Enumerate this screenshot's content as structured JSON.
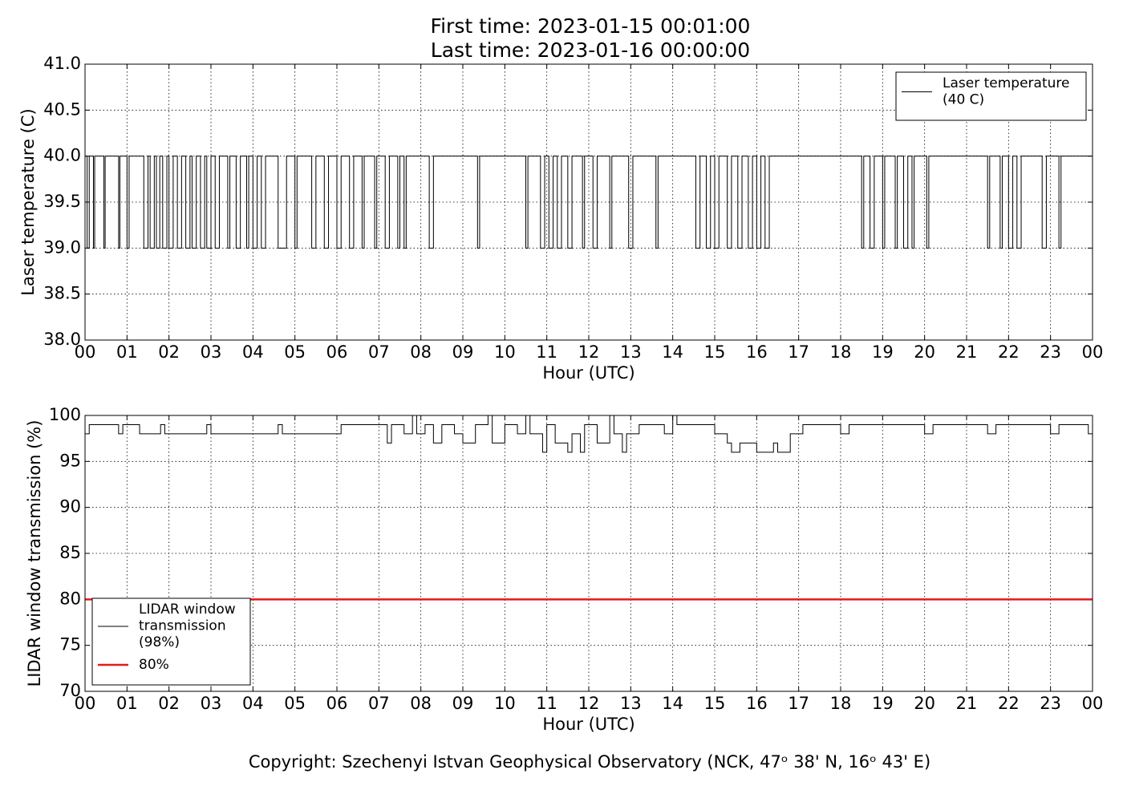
{
  "header": {
    "lines": [
      "First time: 2023-01-15 00:01:00",
      "Last time: 2023-01-16 00:00:00"
    ]
  },
  "footer": "Copyright: Szechenyi Istvan Geophysical Observatory (NCK, 47ᵒ 38' N, 16ᵒ 43' E)",
  "chart_data": [
    {
      "type": "line",
      "step": true,
      "xlabel": "Hour (UTC)",
      "ylabel": "Laser temperature (C)",
      "xlim": [
        0,
        24
      ],
      "ylim": [
        38,
        41
      ],
      "grid": true,
      "legend": "upper right",
      "xticks": [
        {
          "value": 0,
          "label": "00"
        },
        {
          "value": 1,
          "label": "01"
        },
        {
          "value": 2,
          "label": "02"
        },
        {
          "value": 3,
          "label": "03"
        },
        {
          "value": 4,
          "label": "04"
        },
        {
          "value": 5,
          "label": "05"
        },
        {
          "value": 6,
          "label": "06"
        },
        {
          "value": 7,
          "label": "07"
        },
        {
          "value": 8,
          "label": "08"
        },
        {
          "value": 9,
          "label": "09"
        },
        10,
        11,
        12,
        13,
        14,
        15,
        16,
        17,
        18,
        19,
        20,
        21,
        22,
        23,
        {
          "value": 24,
          "label": "00"
        }
      ],
      "yticks": [
        {
          "value": 38,
          "label": "38.0"
        },
        38.5,
        {
          "value": 39,
          "label": "39.0"
        },
        39.5,
        {
          "value": 40,
          "label": "40.0"
        },
        40.5,
        {
          "value": 41,
          "label": "41.0"
        }
      ],
      "series": [
        {
          "name": "Laser temperature\n(40 C)",
          "color": "#000000",
          "width": 1,
          "x": [
            0,
            0.05,
            0.1,
            0.2,
            0.23,
            0.45,
            0.48,
            0.8,
            0.83,
            1.0,
            1.05,
            1.4,
            1.5,
            1.55,
            1.65,
            1.7,
            1.78,
            1.85,
            1.95,
            2.0,
            2.1,
            2.2,
            2.3,
            2.4,
            2.5,
            2.55,
            2.65,
            2.75,
            2.85,
            2.9,
            3.0,
            3.1,
            3.2,
            3.4,
            3.45,
            3.6,
            3.7,
            3.85,
            3.9,
            4.0,
            4.1,
            4.2,
            4.3,
            4.6,
            4.8,
            5.0,
            5.05,
            5.4,
            5.5,
            5.7,
            5.8,
            6.0,
            6.1,
            6.3,
            6.4,
            6.6,
            6.65,
            6.9,
            6.95,
            7.15,
            7.25,
            7.45,
            7.5,
            7.6,
            7.65,
            8.2,
            8.3,
            9.35,
            9.4,
            10.5,
            10.55,
            10.85,
            10.95,
            11.05,
            11.15,
            11.25,
            11.35,
            11.5,
            11.6,
            11.85,
            11.9,
            12.1,
            12.2,
            12.5,
            12.55,
            12.95,
            13.05,
            13.6,
            13.65,
            14.55,
            14.65,
            14.8,
            14.9,
            15.0,
            15.1,
            15.3,
            15.4,
            15.55,
            15.65,
            15.8,
            15.9,
            16.0,
            16.1,
            16.2,
            16.3,
            18.5,
            18.55,
            18.7,
            18.8,
            19.0,
            19.05,
            19.3,
            19.35,
            19.5,
            19.6,
            19.7,
            19.75,
            20.05,
            20.1,
            21.5,
            21.55,
            21.8,
            21.85,
            22.0,
            22.1,
            22.2,
            22.3,
            22.8,
            22.9,
            23.2,
            23.25,
            24
          ],
          "values": [
            40,
            39,
            40,
            39,
            40,
            39,
            40,
            39,
            40,
            39,
            40,
            39,
            40,
            39,
            40,
            39,
            40,
            39,
            40,
            39,
            40,
            39,
            40,
            39,
            40,
            39,
            40,
            39,
            40,
            39,
            40,
            39,
            40,
            39,
            40,
            39,
            40,
            39,
            40,
            39,
            40,
            39,
            40,
            39,
            40,
            39,
            40,
            39,
            40,
            39,
            40,
            39,
            40,
            39,
            40,
            39,
            40,
            39,
            40,
            39,
            40,
            39,
            40,
            39,
            40,
            39,
            40,
            39,
            40,
            39,
            40,
            39,
            40,
            39,
            40,
            39,
            40,
            39,
            40,
            39,
            40,
            39,
            40,
            39,
            40,
            39,
            40,
            39,
            40,
            39,
            40,
            39,
            40,
            39,
            40,
            39,
            40,
            39,
            40,
            39,
            40,
            39,
            40,
            39,
            40,
            39,
            40,
            39,
            40,
            39,
            40,
            39,
            40,
            39,
            40,
            39,
            40,
            39,
            40,
            39,
            40,
            39,
            40,
            39,
            40,
            39,
            40,
            39,
            40,
            39,
            40,
            40
          ]
        }
      ]
    },
    {
      "type": "line",
      "step": true,
      "xlabel": "Hour (UTC)",
      "ylabel": "LIDAR window transmission (%)",
      "xlim": [
        0,
        24
      ],
      "ylim": [
        70,
        100
      ],
      "grid": true,
      "legend": "lower left",
      "xticks": [
        {
          "value": 0,
          "label": "00"
        },
        {
          "value": 1,
          "label": "01"
        },
        {
          "value": 2,
          "label": "02"
        },
        {
          "value": 3,
          "label": "03"
        },
        {
          "value": 4,
          "label": "04"
        },
        {
          "value": 5,
          "label": "05"
        },
        {
          "value": 6,
          "label": "06"
        },
        {
          "value": 7,
          "label": "07"
        },
        {
          "value": 8,
          "label": "08"
        },
        {
          "value": 9,
          "label": "09"
        },
        10,
        11,
        12,
        13,
        14,
        15,
        16,
        17,
        18,
        19,
        20,
        21,
        22,
        23,
        {
          "value": 24,
          "label": "00"
        }
      ],
      "yticks": [
        70,
        75,
        80,
        85,
        90,
        95,
        100
      ],
      "series": [
        {
          "name": "LIDAR window\ntransmission\n(98%)",
          "color": "#000000",
          "width": 1,
          "x": [
            0,
            0.1,
            0.8,
            0.9,
            1.3,
            1.8,
            1.9,
            2.9,
            3.0,
            4.6,
            4.7,
            6.1,
            6.9,
            7.2,
            7.3,
            7.6,
            7.8,
            7.9,
            8.1,
            8.3,
            8.5,
            8.8,
            9.0,
            9.3,
            9.6,
            9.7,
            10.0,
            10.3,
            10.5,
            10.6,
            10.9,
            11.0,
            11.2,
            11.5,
            11.6,
            11.8,
            11.9,
            12.2,
            12.5,
            12.6,
            12.8,
            12.9,
            13.2,
            13.8,
            14.0,
            14.1,
            15.0,
            15.3,
            15.4,
            15.6,
            16.0,
            16.4,
            16.5,
            16.8,
            17.1,
            18.0,
            18.2,
            20.0,
            20.2,
            21.5,
            21.7,
            23.0,
            23.2,
            23.9,
            24
          ],
          "values": [
            98,
            99,
            98,
            99,
            98,
            99,
            98,
            99,
            98,
            99,
            98,
            99,
            99,
            97,
            99,
            98,
            100,
            98,
            99,
            97,
            99,
            98,
            97,
            99,
            100,
            97,
            99,
            98,
            100,
            98,
            96,
            99,
            97,
            96,
            98,
            96,
            99,
            97,
            100,
            98,
            96,
            98,
            99,
            98,
            100,
            99,
            98,
            97,
            96,
            97,
            96,
            97,
            96,
            98,
            99,
            98,
            99,
            98,
            99,
            98,
            99,
            98,
            99,
            98,
            98
          ]
        },
        {
          "name": "80%",
          "color": "#e41a1c",
          "width": 2.5,
          "x": [
            0,
            24
          ],
          "values": [
            80,
            80
          ]
        }
      ]
    }
  ]
}
